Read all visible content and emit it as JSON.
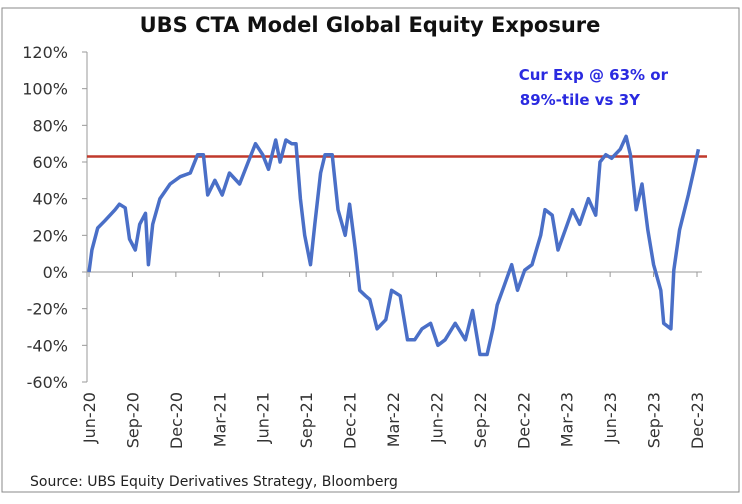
{
  "chart_data": {
    "type": "line",
    "title": "UBS CTA Model Global Equity Exposure",
    "annotation": [
      "Cur Exp @ 63% or",
      "89%-tile vs 3Y"
    ],
    "source": "Source: UBS Equity Derivatives Strategy, Bloomberg",
    "xlabel": "",
    "ylabel": "",
    "ylim": [
      -60,
      120
    ],
    "y_ticks": [
      -60,
      -40,
      -20,
      0,
      20,
      40,
      60,
      80,
      100,
      120
    ],
    "y_tick_labels": [
      "-60%",
      "-40%",
      "-20%",
      "0%",
      "20%",
      "40%",
      "60%",
      "80%",
      "100%",
      "120%"
    ],
    "x_unit": "months since Jun-20",
    "xlim": [
      0,
      42
    ],
    "x_tick_labels": [
      "Jun-20",
      "Sep-20",
      "Dec-20",
      "Mar-21",
      "Jun-21",
      "Sep-21",
      "Dec-21",
      "Mar-22",
      "Jun-22",
      "Sep-22",
      "Dec-22",
      "Mar-23",
      "Jun-23",
      "Sep-23",
      "Dec-23"
    ],
    "reference_line": {
      "value": 63,
      "color": "#c0392b"
    },
    "series": [
      {
        "name": "Global Equity Exposure",
        "color": "#4a6fc7",
        "x": [
          0,
          0.2,
          0.6,
          1.1,
          1.8,
          2.1,
          2.5,
          2.8,
          3.2,
          3.5,
          3.9,
          4.1,
          4.4,
          4.9,
          5.6,
          6.3,
          7.0,
          7.5,
          7.9,
          8.2,
          8.7,
          9.2,
          9.7,
          10.4,
          11.0,
          11.5,
          12.0,
          12.4,
          12.9,
          13.2,
          13.6,
          14.0,
          14.3,
          14.6,
          14.9,
          15.3,
          15.6,
          16.0,
          16.3,
          16.8,
          17.2,
          17.7,
          18.0,
          18.4,
          18.7,
          19.1,
          19.4,
          19.9,
          20.5,
          20.9,
          21.5,
          22.0,
          22.5,
          23.0,
          23.6,
          24.1,
          24.6,
          25.3,
          26.0,
          26.5,
          27.0,
          27.5,
          27.9,
          28.2,
          28.7,
          29.2,
          29.6,
          30.1,
          30.6,
          31.2,
          31.5,
          32.0,
          32.4,
          32.9,
          33.4,
          33.9,
          34.5,
          35.0,
          35.3,
          35.7,
          36.1,
          36.7,
          37.1,
          37.4,
          37.8,
          38.2,
          38.6,
          39.0,
          39.5,
          39.7,
          40.2,
          40.4,
          40.8,
          41.4,
          41.8,
          42.1
        ],
        "values": [
          0,
          12,
          24,
          28,
          34,
          37,
          35,
          18,
          12,
          26,
          32,
          4,
          26,
          40,
          48,
          52,
          54,
          64,
          64,
          42,
          50,
          42,
          54,
          48,
          60,
          70,
          64,
          56,
          72,
          60,
          72,
          70,
          70,
          40,
          20,
          4,
          26,
          54,
          64,
          64,
          34,
          20,
          37,
          12,
          -10,
          -13,
          -15,
          -31,
          -26,
          -10,
          -13,
          -37,
          -37,
          -31,
          -28,
          -40,
          -37,
          -28,
          -37,
          -21,
          -45,
          -45,
          -31,
          -18,
          -7,
          4,
          -10,
          1,
          4,
          20,
          34,
          31,
          12,
          23,
          34,
          26,
          40,
          31,
          60,
          64,
          62,
          67,
          74,
          64,
          34,
          48,
          23,
          4,
          -10,
          -28,
          -31,
          1,
          23,
          42,
          56,
          67
        ]
      }
    ]
  }
}
